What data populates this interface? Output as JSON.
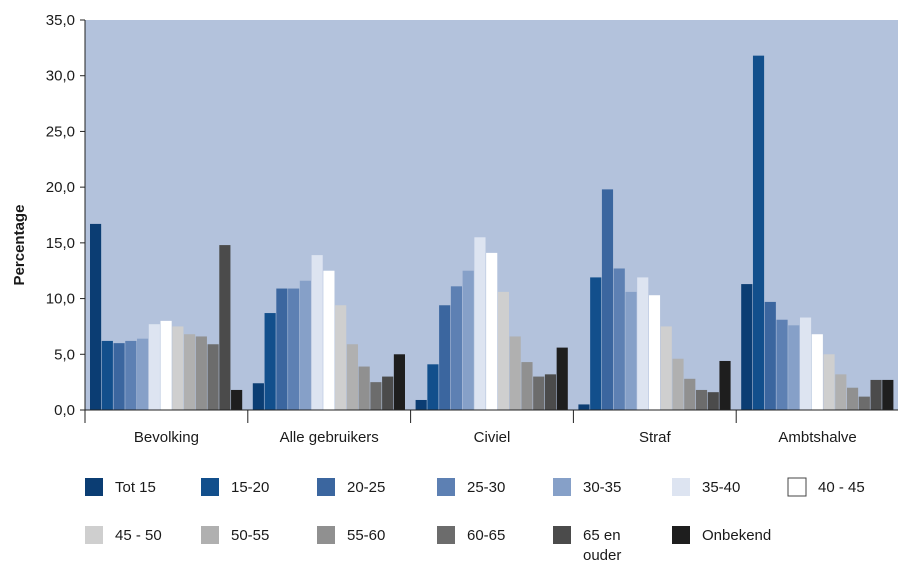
{
  "chart_data": {
    "type": "bar",
    "ylabel": "Percentage",
    "xlabel": "",
    "ylim": [
      0,
      35
    ],
    "yticks": [
      "0,0",
      "5,0",
      "10,0",
      "15,0",
      "20,0",
      "25,0",
      "30,0",
      "35,0"
    ],
    "grid": false,
    "legend_position": "bottom",
    "background_color": "#b3c2dc",
    "categories": [
      "Bevolking",
      "Alle gebruikers",
      "Civiel",
      "Straf",
      "Ambtshalve"
    ],
    "series": [
      {
        "name": "Tot 15",
        "color": "#0b3d73",
        "values": [
          16.7,
          2.4,
          0.9,
          0.5,
          11.3
        ]
      },
      {
        "name": "15-20",
        "color": "#124f8c",
        "values": [
          6.2,
          8.7,
          4.1,
          11.9,
          31.8
        ]
      },
      {
        "name": "20-25",
        "color": "#3b669f",
        "values": [
          6.0,
          10.9,
          9.4,
          19.8,
          9.7
        ]
      },
      {
        "name": "25-30",
        "color": "#5d80b3",
        "values": [
          6.2,
          10.9,
          11.1,
          12.7,
          8.1
        ]
      },
      {
        "name": "30-35",
        "color": "#86a0c8",
        "values": [
          6.4,
          11.6,
          12.5,
          10.6,
          7.6
        ]
      },
      {
        "name": "35-40",
        "color": "#dde4f1",
        "values": [
          7.7,
          13.9,
          15.5,
          11.9,
          8.3
        ]
      },
      {
        "name": "40 - 45",
        "color": "#ffffff",
        "values": [
          8.0,
          12.5,
          14.1,
          10.3,
          6.8
        ]
      },
      {
        "name": "45 - 50",
        "color": "#cfcfcf",
        "values": [
          7.5,
          9.4,
          10.6,
          7.5,
          5.0
        ]
      },
      {
        "name": "50-55",
        "color": "#b0b0b0",
        "values": [
          6.8,
          5.9,
          6.6,
          4.6,
          3.2
        ]
      },
      {
        "name": "55-60",
        "color": "#909090",
        "values": [
          6.6,
          3.9,
          4.3,
          2.8,
          2.0
        ]
      },
      {
        "name": "60-65",
        "color": "#6c6c6c",
        "values": [
          5.9,
          2.5,
          3.0,
          1.8,
          1.2
        ]
      },
      {
        "name": "65 en ouder",
        "color": "#4b4b4b",
        "values": [
          14.8,
          3.0,
          3.2,
          1.6,
          2.7
        ]
      },
      {
        "name": "Onbekend",
        "color": "#1e1e1e",
        "values": [
          1.8,
          5.0,
          5.6,
          4.4,
          2.7
        ]
      }
    ]
  }
}
